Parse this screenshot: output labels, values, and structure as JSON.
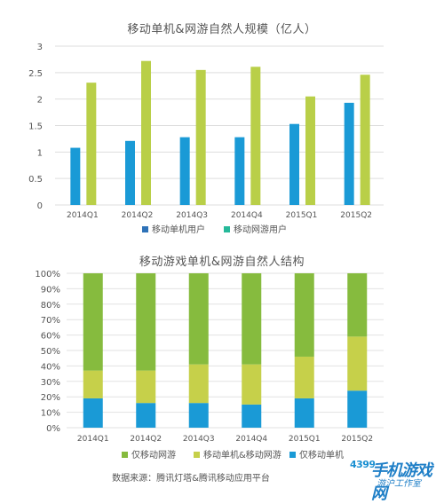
{
  "chart_data": [
    {
      "type": "bar",
      "title": "移动单机&网游自然人规模（亿人）",
      "categories": [
        "2014Q1",
        "2014Q2",
        "2014Q3",
        "2014Q4",
        "2015Q1",
        "2015Q2"
      ],
      "yticks": [
        "0",
        "0.5",
        "1",
        "1.5",
        "2",
        "2.5",
        "3"
      ],
      "ylim": [
        0,
        3
      ],
      "series": [
        {
          "name": "移动单机用户",
          "values": [
            1.08,
            1.21,
            1.28,
            1.28,
            1.53,
            1.93
          ],
          "color": "#1a9ad6"
        },
        {
          "name": "移动网游用户",
          "values": [
            2.31,
            2.72,
            2.55,
            2.61,
            2.05,
            2.46
          ],
          "color": "#b9cf48"
        }
      ],
      "grid": true,
      "legend_position": "bottom"
    },
    {
      "type": "bar",
      "stacked": true,
      "title": "移动游戏单机&网游自然人结构",
      "categories": [
        "2014Q1",
        "2014Q2",
        "2014Q3",
        "2014Q4",
        "2015Q1",
        "2015Q2"
      ],
      "yticks": [
        "0%",
        "10%",
        "20%",
        "30%",
        "40%",
        "50%",
        "60%",
        "70%",
        "80%",
        "90%",
        "100%"
      ],
      "ylim": [
        0,
        100
      ],
      "series": [
        {
          "name": "仅移动单机",
          "values": [
            19,
            16,
            16,
            15,
            19,
            24
          ],
          "color": "#1a9ad6"
        },
        {
          "name": "移动单机&移动网游",
          "values": [
            18,
            21,
            25,
            26,
            27,
            35
          ],
          "color": "#c6d04a"
        },
        {
          "name": "仅移动网游",
          "values": [
            63,
            63,
            59,
            59,
            54,
            41
          ],
          "color": "#86bb3e"
        }
      ],
      "legend_order": [
        "仅移动网游",
        "移动单机&移动网游",
        "仅移动单机"
      ],
      "grid": true,
      "legend_position": "bottom"
    }
  ],
  "source_text": "数据来源：腾讯灯塔&腾讯移动应用平台",
  "watermark": {
    "number": "4399",
    "main": "手机游戏网",
    "sub": "游沪工作室"
  }
}
